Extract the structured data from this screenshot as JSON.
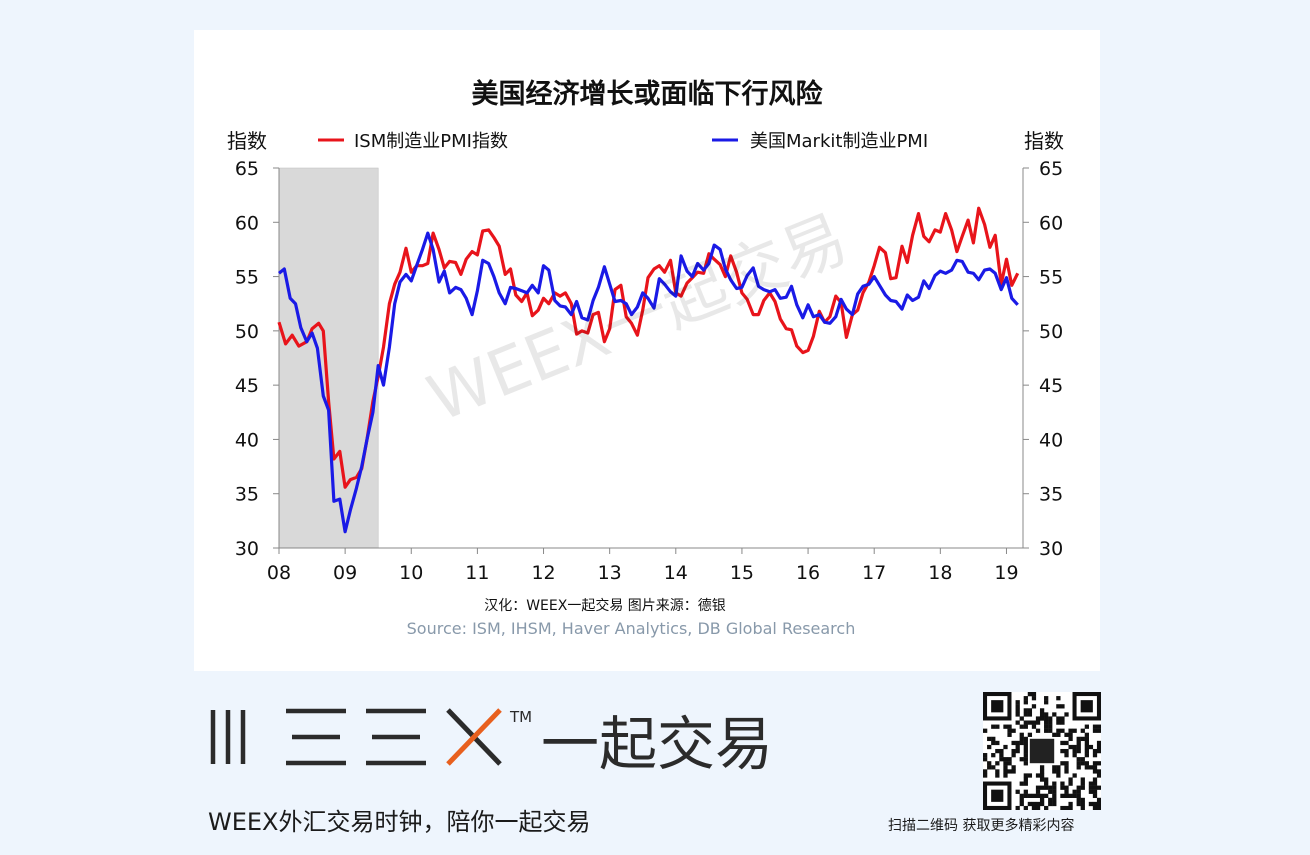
{
  "chart_data": {
    "type": "line",
    "title": "美国经济增长或面临下行风险",
    "ylabel_left": "指数",
    "ylabel_right": "指数",
    "ylim": [
      30,
      65
    ],
    "yticks": [
      "30",
      "35",
      "40",
      "45",
      "50",
      "55",
      "60",
      "65"
    ],
    "xlim": [
      2008,
      2019.25
    ],
    "xticks": [
      {
        "value": 2008,
        "label": "08"
      },
      {
        "value": 2009,
        "label": "09"
      },
      {
        "value": 2010,
        "label": "10"
      },
      {
        "value": 2011,
        "label": "11"
      },
      {
        "value": 2012,
        "label": "12"
      },
      {
        "value": 2013,
        "label": "13"
      },
      {
        "value": 2014,
        "label": "14"
      },
      {
        "value": 2015,
        "label": "15"
      },
      {
        "value": 2016,
        "label": "16"
      },
      {
        "value": 2017,
        "label": "17"
      },
      {
        "value": 2018,
        "label": "18"
      },
      {
        "value": 2019,
        "label": "19"
      }
    ],
    "recession_shading": {
      "start": 2008.0,
      "end": 2009.5
    },
    "series": [
      {
        "name": "ISM制造业PMI指数",
        "color": "#e8141b",
        "points": [
          [
            2008.0,
            50.8
          ],
          [
            2008.1,
            48.8
          ],
          [
            2008.2,
            49.6
          ],
          [
            2008.3,
            48.6
          ],
          [
            2008.42,
            49.0
          ],
          [
            2008.5,
            50.2
          ],
          [
            2008.6,
            50.7
          ],
          [
            2008.67,
            50.0
          ],
          [
            2008.75,
            43.5
          ],
          [
            2008.83,
            38.2
          ],
          [
            2008.92,
            38.9
          ],
          [
            2009.0,
            35.6
          ],
          [
            2009.08,
            36.3
          ],
          [
            2009.17,
            36.5
          ],
          [
            2009.25,
            37.3
          ],
          [
            2009.33,
            40.0
          ],
          [
            2009.42,
            43.5
          ],
          [
            2009.5,
            45.8
          ],
          [
            2009.58,
            48.5
          ],
          [
            2009.67,
            52.5
          ],
          [
            2009.75,
            54.3
          ],
          [
            2009.83,
            55.4
          ],
          [
            2009.92,
            57.6
          ],
          [
            2010.0,
            55.4
          ],
          [
            2010.08,
            56.0
          ],
          [
            2010.17,
            56.0
          ],
          [
            2010.25,
            56.2
          ],
          [
            2010.33,
            59.0
          ],
          [
            2010.42,
            57.5
          ],
          [
            2010.5,
            55.8
          ],
          [
            2010.58,
            56.4
          ],
          [
            2010.67,
            56.3
          ],
          [
            2010.75,
            55.2
          ],
          [
            2010.83,
            56.6
          ],
          [
            2010.92,
            57.3
          ],
          [
            2011.0,
            57.0
          ],
          [
            2011.08,
            59.2
          ],
          [
            2011.17,
            59.3
          ],
          [
            2011.25,
            58.6
          ],
          [
            2011.33,
            57.8
          ],
          [
            2011.42,
            55.2
          ],
          [
            2011.5,
            55.7
          ],
          [
            2011.58,
            53.3
          ],
          [
            2011.67,
            52.7
          ],
          [
            2011.75,
            53.5
          ],
          [
            2011.83,
            51.4
          ],
          [
            2011.92,
            51.9
          ],
          [
            2012.0,
            53.0
          ],
          [
            2012.08,
            52.5
          ],
          [
            2012.17,
            53.5
          ],
          [
            2012.25,
            53.2
          ],
          [
            2012.33,
            53.5
          ],
          [
            2012.42,
            52.5
          ],
          [
            2012.5,
            49.7
          ],
          [
            2012.58,
            50.0
          ],
          [
            2012.67,
            49.8
          ],
          [
            2012.75,
            51.5
          ],
          [
            2012.83,
            51.7
          ],
          [
            2012.92,
            49.0
          ],
          [
            2013.0,
            50.2
          ],
          [
            2013.08,
            53.8
          ],
          [
            2013.17,
            54.2
          ],
          [
            2013.25,
            51.3
          ],
          [
            2013.33,
            50.7
          ],
          [
            2013.42,
            49.6
          ],
          [
            2013.5,
            51.9
          ],
          [
            2013.58,
            54.9
          ],
          [
            2013.67,
            55.7
          ],
          [
            2013.75,
            56.0
          ],
          [
            2013.83,
            55.4
          ],
          [
            2013.92,
            56.5
          ],
          [
            2014.0,
            53.5
          ],
          [
            2014.08,
            53.2
          ],
          [
            2014.17,
            54.4
          ],
          [
            2014.25,
            54.9
          ],
          [
            2014.33,
            55.4
          ],
          [
            2014.42,
            55.3
          ],
          [
            2014.5,
            57.1
          ],
          [
            2014.58,
            56.6
          ],
          [
            2014.67,
            56.1
          ],
          [
            2014.75,
            55.0
          ],
          [
            2014.83,
            56.9
          ],
          [
            2014.92,
            55.4
          ],
          [
            2015.0,
            53.5
          ],
          [
            2015.08,
            52.9
          ],
          [
            2015.17,
            51.5
          ],
          [
            2015.25,
            51.5
          ],
          [
            2015.33,
            52.8
          ],
          [
            2015.42,
            53.5
          ],
          [
            2015.5,
            52.7
          ],
          [
            2015.58,
            51.1
          ],
          [
            2015.67,
            50.2
          ],
          [
            2015.75,
            50.1
          ],
          [
            2015.83,
            48.6
          ],
          [
            2015.92,
            48.0
          ],
          [
            2016.0,
            48.2
          ],
          [
            2016.08,
            49.5
          ],
          [
            2016.17,
            51.8
          ],
          [
            2016.25,
            50.8
          ],
          [
            2016.33,
            51.3
          ],
          [
            2016.42,
            53.2
          ],
          [
            2016.5,
            52.6
          ],
          [
            2016.58,
            49.4
          ],
          [
            2016.67,
            51.5
          ],
          [
            2016.75,
            51.9
          ],
          [
            2016.83,
            53.5
          ],
          [
            2016.92,
            54.5
          ],
          [
            2017.0,
            56.0
          ],
          [
            2017.08,
            57.7
          ],
          [
            2017.17,
            57.2
          ],
          [
            2017.25,
            54.8
          ],
          [
            2017.33,
            54.9
          ],
          [
            2017.42,
            57.8
          ],
          [
            2017.5,
            56.3
          ],
          [
            2017.58,
            58.8
          ],
          [
            2017.67,
            60.8
          ],
          [
            2017.75,
            58.7
          ],
          [
            2017.83,
            58.2
          ],
          [
            2017.92,
            59.3
          ],
          [
            2018.0,
            59.1
          ],
          [
            2018.08,
            60.8
          ],
          [
            2018.17,
            59.3
          ],
          [
            2018.25,
            57.3
          ],
          [
            2018.33,
            58.7
          ],
          [
            2018.42,
            60.2
          ],
          [
            2018.5,
            58.1
          ],
          [
            2018.58,
            61.3
          ],
          [
            2018.67,
            59.8
          ],
          [
            2018.75,
            57.7
          ],
          [
            2018.83,
            58.8
          ],
          [
            2018.92,
            54.3
          ],
          [
            2019.0,
            56.6
          ],
          [
            2019.08,
            54.2
          ],
          [
            2019.17,
            55.3
          ]
        ]
      },
      {
        "name": "美国Markit制造业PMI",
        "color": "#1a1ae6",
        "points": [
          [
            2008.0,
            55.3
          ],
          [
            2008.08,
            55.7
          ],
          [
            2008.17,
            53.0
          ],
          [
            2008.25,
            52.5
          ],
          [
            2008.33,
            50.3
          ],
          [
            2008.42,
            49.0
          ],
          [
            2008.5,
            49.8
          ],
          [
            2008.58,
            48.4
          ],
          [
            2008.67,
            44.0
          ],
          [
            2008.75,
            42.7
          ],
          [
            2008.83,
            34.3
          ],
          [
            2008.92,
            34.5
          ],
          [
            2009.0,
            31.5
          ],
          [
            2009.08,
            33.5
          ],
          [
            2009.17,
            35.5
          ],
          [
            2009.25,
            37.5
          ],
          [
            2009.33,
            40.0
          ],
          [
            2009.42,
            42.5
          ],
          [
            2009.5,
            46.8
          ],
          [
            2009.58,
            45.0
          ],
          [
            2009.67,
            48.5
          ],
          [
            2009.75,
            52.5
          ],
          [
            2009.83,
            54.5
          ],
          [
            2009.92,
            55.2
          ],
          [
            2010.0,
            54.6
          ],
          [
            2010.08,
            56.0
          ],
          [
            2010.17,
            57.5
          ],
          [
            2010.25,
            59.0
          ],
          [
            2010.33,
            57.5
          ],
          [
            2010.42,
            54.5
          ],
          [
            2010.5,
            55.5
          ],
          [
            2010.58,
            53.5
          ],
          [
            2010.67,
            54.0
          ],
          [
            2010.75,
            53.8
          ],
          [
            2010.83,
            53.0
          ],
          [
            2010.92,
            51.5
          ],
          [
            2011.0,
            53.7
          ],
          [
            2011.08,
            56.5
          ],
          [
            2011.17,
            56.2
          ],
          [
            2011.25,
            55.0
          ],
          [
            2011.33,
            53.5
          ],
          [
            2011.42,
            52.5
          ],
          [
            2011.5,
            54.0
          ],
          [
            2011.58,
            53.9
          ],
          [
            2011.67,
            53.7
          ],
          [
            2011.75,
            53.5
          ],
          [
            2011.83,
            54.2
          ],
          [
            2011.92,
            53.5
          ],
          [
            2012.0,
            56.0
          ],
          [
            2012.08,
            55.6
          ],
          [
            2012.17,
            52.8
          ],
          [
            2012.25,
            52.3
          ],
          [
            2012.33,
            52.2
          ],
          [
            2012.42,
            51.5
          ],
          [
            2012.5,
            52.7
          ],
          [
            2012.58,
            51.2
          ],
          [
            2012.67,
            51.0
          ],
          [
            2012.75,
            52.8
          ],
          [
            2012.83,
            54.0
          ],
          [
            2012.92,
            55.9
          ],
          [
            2013.0,
            54.3
          ],
          [
            2013.08,
            52.7
          ],
          [
            2013.17,
            52.8
          ],
          [
            2013.25,
            52.5
          ],
          [
            2013.33,
            51.5
          ],
          [
            2013.42,
            52.2
          ],
          [
            2013.5,
            53.5
          ],
          [
            2013.58,
            53.0
          ],
          [
            2013.67,
            52.1
          ],
          [
            2013.75,
            54.8
          ],
          [
            2013.83,
            54.3
          ],
          [
            2013.92,
            53.6
          ],
          [
            2014.0,
            53.2
          ],
          [
            2014.08,
            56.9
          ],
          [
            2014.17,
            55.5
          ],
          [
            2014.25,
            55.0
          ],
          [
            2014.33,
            56.2
          ],
          [
            2014.42,
            55.6
          ],
          [
            2014.5,
            56.2
          ],
          [
            2014.58,
            57.9
          ],
          [
            2014.67,
            57.5
          ],
          [
            2014.75,
            55.7
          ],
          [
            2014.83,
            54.7
          ],
          [
            2014.92,
            53.9
          ],
          [
            2015.0,
            54.0
          ],
          [
            2015.08,
            55.1
          ],
          [
            2015.17,
            55.8
          ],
          [
            2015.25,
            54.1
          ],
          [
            2015.33,
            53.8
          ],
          [
            2015.42,
            53.6
          ],
          [
            2015.5,
            53.8
          ],
          [
            2015.58,
            53.0
          ],
          [
            2015.67,
            53.1
          ],
          [
            2015.75,
            54.1
          ],
          [
            2015.83,
            52.4
          ],
          [
            2015.92,
            51.2
          ],
          [
            2016.0,
            52.4
          ],
          [
            2016.08,
            51.3
          ],
          [
            2016.17,
            51.5
          ],
          [
            2016.25,
            50.8
          ],
          [
            2016.33,
            50.7
          ],
          [
            2016.42,
            51.3
          ],
          [
            2016.5,
            52.9
          ],
          [
            2016.58,
            52.0
          ],
          [
            2016.67,
            51.5
          ],
          [
            2016.75,
            53.4
          ],
          [
            2016.83,
            54.1
          ],
          [
            2016.92,
            54.3
          ],
          [
            2017.0,
            55.0
          ],
          [
            2017.08,
            54.2
          ],
          [
            2017.17,
            53.3
          ],
          [
            2017.25,
            52.8
          ],
          [
            2017.33,
            52.7
          ],
          [
            2017.42,
            52.0
          ],
          [
            2017.5,
            53.3
          ],
          [
            2017.58,
            52.8
          ],
          [
            2017.67,
            53.1
          ],
          [
            2017.75,
            54.6
          ],
          [
            2017.83,
            53.9
          ],
          [
            2017.92,
            55.1
          ],
          [
            2018.0,
            55.5
          ],
          [
            2018.08,
            55.3
          ],
          [
            2018.17,
            55.6
          ],
          [
            2018.25,
            56.5
          ],
          [
            2018.33,
            56.4
          ],
          [
            2018.42,
            55.4
          ],
          [
            2018.5,
            55.3
          ],
          [
            2018.58,
            54.7
          ],
          [
            2018.67,
            55.6
          ],
          [
            2018.75,
            55.7
          ],
          [
            2018.83,
            55.3
          ],
          [
            2018.92,
            53.8
          ],
          [
            2019.0,
            54.9
          ],
          [
            2019.08,
            53.0
          ],
          [
            2019.17,
            52.4
          ]
        ]
      }
    ],
    "credit_line": "汉化：WEEX一起交易   图片来源：德银",
    "source_line": "Source: ISM, IHSM, Haver Analytics, DB Global Research"
  },
  "watermark_text": "WEEX一起交易",
  "footer": {
    "brand_logo_text": "一起交易",
    "trademark": "TM",
    "slogan": "WEEX外汇交易时钟，陪你一起交易",
    "qr_caption": "扫描二维码 获取更多精彩内容"
  },
  "colors": {
    "page_background": "#eef5fd",
    "card_background": "#ffffff",
    "recession_shade": "#d9d9d9",
    "logo_gray": "#2b2b2b",
    "logo_accent": "#e8601e",
    "source_text": "#8899aa"
  }
}
